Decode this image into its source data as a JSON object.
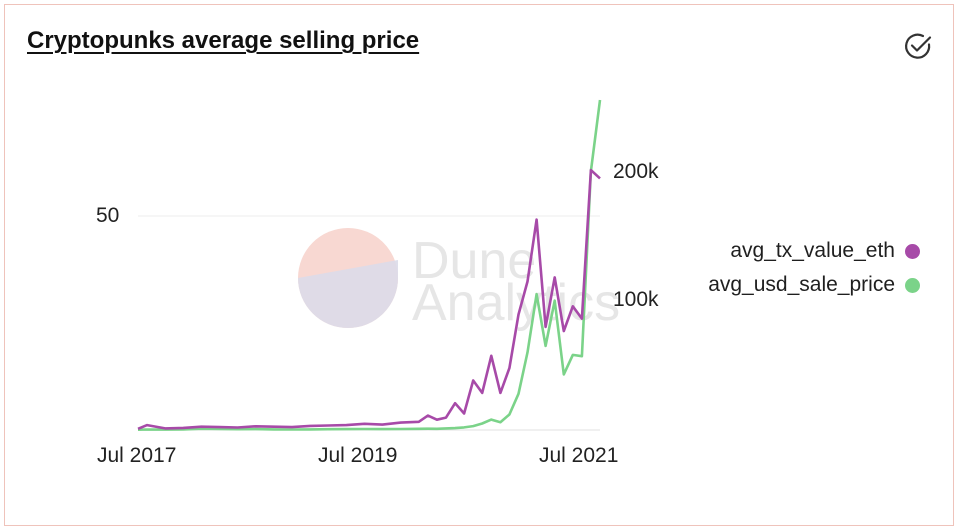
{
  "card": {
    "title": "Cryptopunks average selling price",
    "action_icon": "check-circle-icon"
  },
  "watermark": {
    "line1": "Dune",
    "line2": "Analytics"
  },
  "colors": {
    "eth": "#a74aa8",
    "usd": "#7bd389",
    "grid": "#ececec",
    "frame": "#efc3bb"
  },
  "chart_data": {
    "type": "line",
    "title": "Cryptopunks average selling price",
    "x_ticks": [
      "Jul 2017",
      "Jul 2019",
      "Jul 2021"
    ],
    "y_left_ticks": [
      "50"
    ],
    "y_right_ticks": [
      "200k",
      "100k"
    ],
    "y_left_range": [
      0,
      80
    ],
    "y_right_range": [
      0,
      255000
    ],
    "x_range": [
      "2017-06",
      "2021-09"
    ],
    "legend_position": "right",
    "grid": "horizontal",
    "series": [
      {
        "name": "avg_tx_value_eth",
        "axis": "left",
        "x": [
          "2017-06",
          "2017-07",
          "2017-09",
          "2017-11",
          "2018-01",
          "2018-03",
          "2018-05",
          "2018-07",
          "2018-09",
          "2018-11",
          "2019-01",
          "2019-03",
          "2019-05",
          "2019-07",
          "2019-09",
          "2019-11",
          "2020-01",
          "2020-02",
          "2020-03",
          "2020-04",
          "2020-05",
          "2020-06",
          "2020-07",
          "2020-08",
          "2020-09",
          "2020-10",
          "2020-11",
          "2020-12",
          "2021-01",
          "2021-02",
          "2021-03",
          "2021-04",
          "2021-05",
          "2021-06",
          "2021-07",
          "2021-08",
          "2021-09"
        ],
        "y": [
          0.3,
          1.2,
          0.4,
          0.5,
          0.8,
          0.7,
          0.6,
          0.9,
          0.8,
          0.7,
          1.0,
          1.1,
          1.2,
          1.5,
          1.3,
          1.8,
          2.0,
          3.5,
          2.5,
          3.0,
          6.5,
          4.0,
          12.0,
          9.0,
          18.0,
          9.0,
          15.0,
          28.0,
          36.0,
          51.0,
          25.0,
          37.0,
          24.0,
          30.0,
          27.0,
          63.0,
          61.0
        ]
      },
      {
        "name": "avg_usd_sale_price",
        "axis": "right",
        "x": [
          "2017-06",
          "2017-07",
          "2017-09",
          "2017-11",
          "2018-01",
          "2018-03",
          "2018-05",
          "2018-07",
          "2018-09",
          "2018-11",
          "2019-01",
          "2019-03",
          "2019-05",
          "2019-07",
          "2019-09",
          "2019-11",
          "2020-01",
          "2020-02",
          "2020-03",
          "2020-04",
          "2020-05",
          "2020-06",
          "2020-07",
          "2020-08",
          "2020-09",
          "2020-10",
          "2020-11",
          "2020-12",
          "2021-01",
          "2021-02",
          "2021-03",
          "2021-04",
          "2021-05",
          "2021-06",
          "2021-07",
          "2021-08",
          "2021-09"
        ],
        "y": [
          200,
          400,
          300,
          500,
          1000,
          800,
          600,
          700,
          500,
          400,
          500,
          600,
          700,
          800,
          700,
          800,
          900,
          1000,
          900,
          1200,
          1500,
          2000,
          3000,
          5000,
          8000,
          6000,
          12000,
          28000,
          60000,
          105000,
          65000,
          100000,
          43000,
          58000,
          57000,
          200000,
          255000
        ]
      }
    ]
  }
}
